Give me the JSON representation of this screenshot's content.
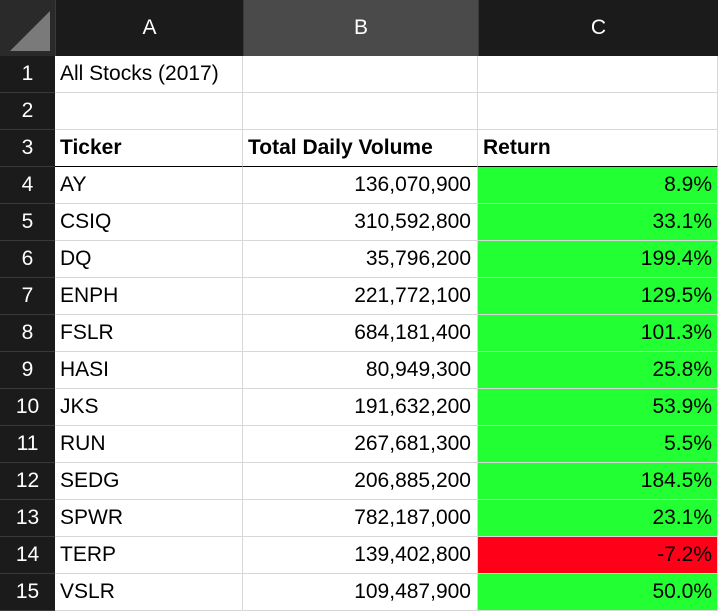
{
  "columns": {
    "a": "A",
    "b": "B",
    "c": "C"
  },
  "colors": {
    "positive": "#22ff33",
    "negative": "#ff0019",
    "header_bg": "#1b1b1b",
    "selected_col_bg": "#4a4a4a"
  },
  "row1": {
    "num": "1",
    "a": "All Stocks (2017)"
  },
  "row2": {
    "num": "2"
  },
  "headers": {
    "num": "3",
    "ticker": "Ticker",
    "volume": "Total Daily Volume",
    "return": "Return"
  },
  "rows": [
    {
      "num": "4",
      "ticker": "AY",
      "volume": "136,070,900",
      "return": "8.9%",
      "status": "positive"
    },
    {
      "num": "5",
      "ticker": "CSIQ",
      "volume": "310,592,800",
      "return": "33.1%",
      "status": "positive"
    },
    {
      "num": "6",
      "ticker": "DQ",
      "volume": "35,796,200",
      "return": "199.4%",
      "status": "positive"
    },
    {
      "num": "7",
      "ticker": "ENPH",
      "volume": "221,772,100",
      "return": "129.5%",
      "status": "positive"
    },
    {
      "num": "8",
      "ticker": "FSLR",
      "volume": "684,181,400",
      "return": "101.3%",
      "status": "positive"
    },
    {
      "num": "9",
      "ticker": "HASI",
      "volume": "80,949,300",
      "return": "25.8%",
      "status": "positive"
    },
    {
      "num": "10",
      "ticker": "JKS",
      "volume": "191,632,200",
      "return": "53.9%",
      "status": "positive"
    },
    {
      "num": "11",
      "ticker": "RUN",
      "volume": "267,681,300",
      "return": "5.5%",
      "status": "positive"
    },
    {
      "num": "12",
      "ticker": "SEDG",
      "volume": "206,885,200",
      "return": "184.5%",
      "status": "positive"
    },
    {
      "num": "13",
      "ticker": "SPWR",
      "volume": "782,187,000",
      "return": "23.1%",
      "status": "positive"
    },
    {
      "num": "14",
      "ticker": "TERP",
      "volume": "139,402,800",
      "return": "-7.2%",
      "status": "negative"
    },
    {
      "num": "15",
      "ticker": "VSLR",
      "volume": "109,487,900",
      "return": "50.0%",
      "status": "positive"
    }
  ]
}
